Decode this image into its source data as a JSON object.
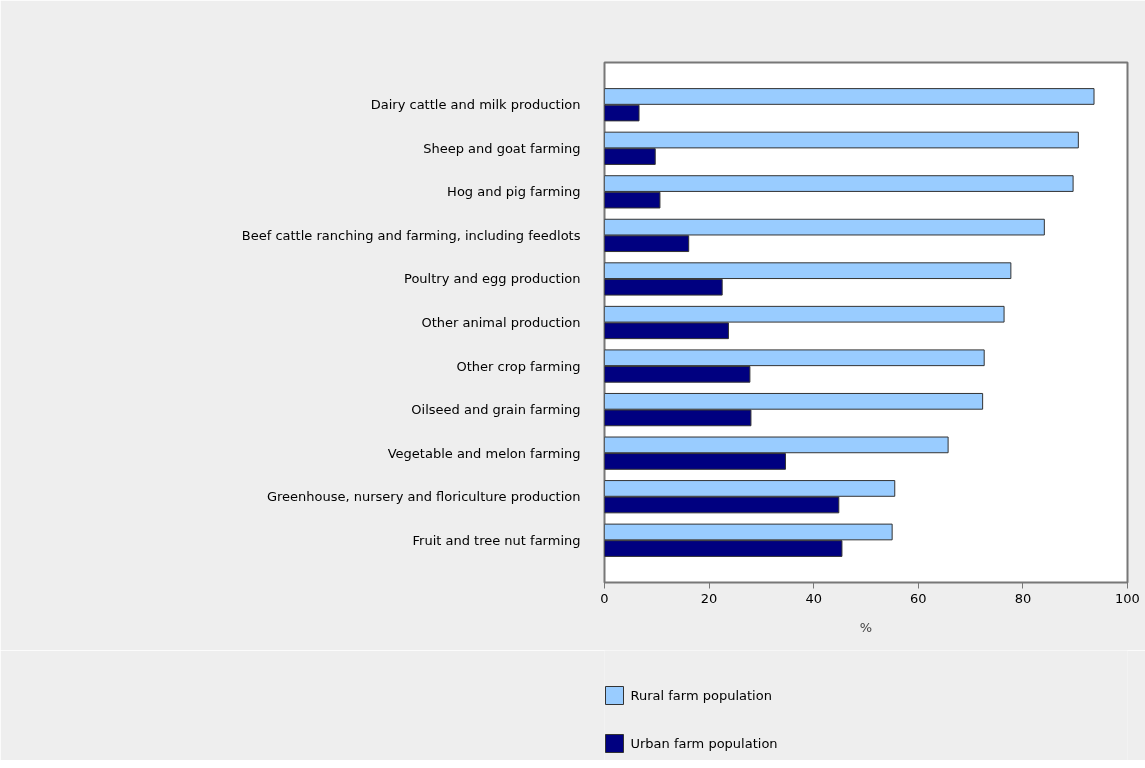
{
  "chart_data": {
    "type": "bar",
    "orientation": "horizontal",
    "xlabel": "%",
    "categories": [
      "Dairy cattle and milk production",
      "Sheep and goat farming",
      "Hog and pig farming",
      "Beef cattle ranching and farming, including feedlots",
      "Poultry and egg production",
      "Other animal production",
      "Other crop farming",
      "Oilseed and grain farming",
      "Vegetable and melon farming",
      "Greenhouse, nursery and floriculture production",
      "Fruit and tree nut farming"
    ],
    "series": [
      {
        "name": "Rural farm population",
        "color": "#99ccff",
        "values": [
          93.6,
          90.6,
          89.6,
          84.1,
          77.7,
          76.4,
          72.6,
          72.3,
          65.7,
          55.5,
          55.0
        ]
      },
      {
        "name": "Urban farm population",
        "color": "#000080",
        "values": [
          6.6,
          9.7,
          10.6,
          16.1,
          22.5,
          23.7,
          27.8,
          28.0,
          34.6,
          44.8,
          45.4
        ]
      }
    ],
    "xlim": [
      0,
      100
    ],
    "xticks": [
      0,
      20,
      40,
      60,
      80,
      100
    ],
    "grid": false,
    "legend": "bottom"
  }
}
